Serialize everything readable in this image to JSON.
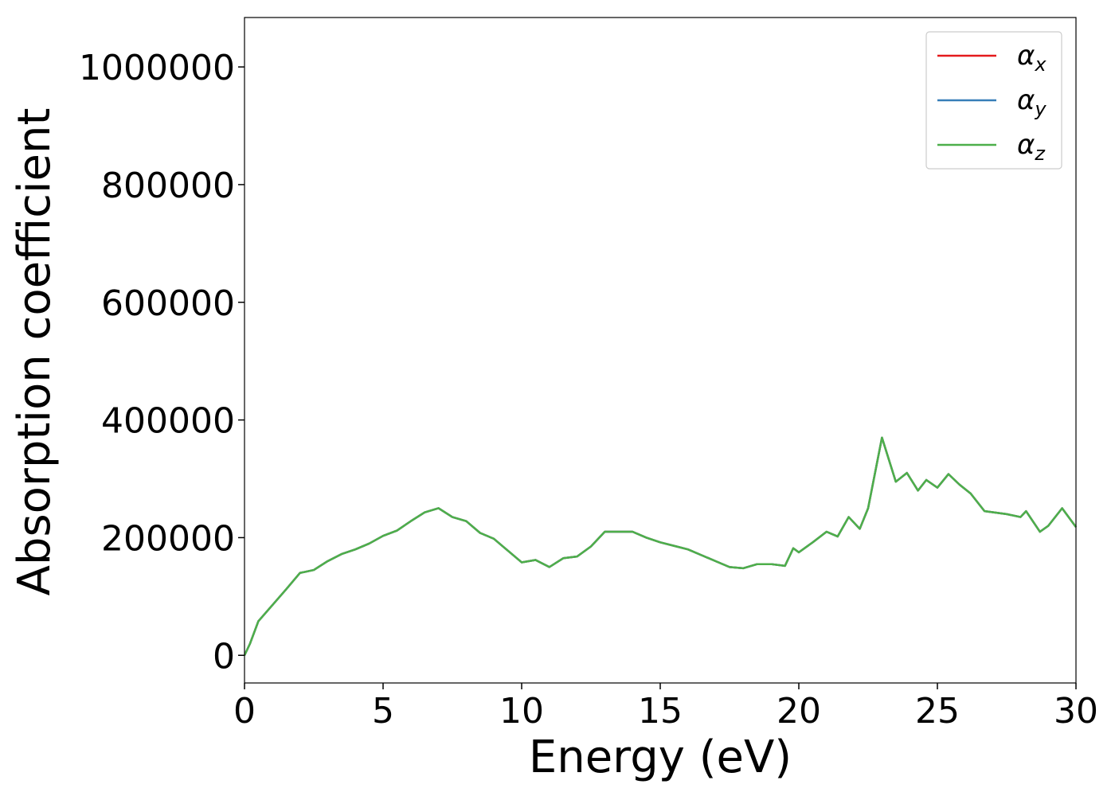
{
  "chart_data": {
    "type": "line",
    "xlabel": "Energy (eV)",
    "ylabel": "Absorption coefficient",
    "xlim": [
      0,
      30
    ],
    "xticks": [
      0,
      5,
      10,
      15,
      20,
      25,
      30
    ],
    "ylim": [
      -47000,
      1084000
    ],
    "yticks": [
      0,
      200000,
      400000,
      600000,
      800000,
      1000000
    ],
    "legend": "upper right",
    "x": [
      0,
      0.2,
      0.5,
      1.0,
      1.5,
      2.0,
      2.5,
      3.0,
      3.5,
      4.0,
      4.5,
      5.0,
      5.5,
      6.0,
      6.5,
      7.0,
      7.5,
      8.0,
      8.5,
      9.0,
      9.5,
      10.0,
      10.5,
      11.0,
      11.5,
      12.0,
      12.5,
      13.0,
      13.5,
      14.0,
      14.5,
      15.0,
      15.5,
      16.0,
      16.5,
      17.0,
      17.5,
      18.0,
      18.5,
      19.0,
      19.5,
      19.8,
      20.0,
      20.5,
      21.0,
      21.4,
      21.8,
      22.2,
      22.5,
      23.0,
      23.5,
      23.9,
      24.3,
      24.6,
      25.0,
      25.4,
      25.8,
      26.2,
      26.7,
      27.5,
      28.0,
      28.2,
      28.7,
      29.0,
      29.5,
      30.0
    ],
    "series": [
      {
        "name": "αx",
        "color": "#e41a1c",
        "values": [
          0,
          20000,
          58000,
          85000,
          112000,
          140000,
          145000,
          160000,
          172000,
          180000,
          190000,
          203000,
          212000,
          228000,
          243000,
          250000,
          235000,
          228000,
          208000,
          198000,
          178000,
          158000,
          162000,
          150000,
          165000,
          168000,
          185000,
          210000,
          210000,
          210000,
          200000,
          192000,
          186000,
          180000,
          170000,
          160000,
          150000,
          148000,
          155000,
          155000,
          152000,
          182000,
          175000,
          192000,
          210000,
          202000,
          235000,
          215000,
          250000,
          370000,
          295000,
          310000,
          280000,
          298000,
          285000,
          308000,
          290000,
          275000,
          245000,
          240000,
          235000,
          245000,
          210000,
          220000,
          250000,
          218000
        ]
      },
      {
        "name": "αy",
        "color": "#377eb8",
        "values": [
          0,
          20000,
          58000,
          85000,
          112000,
          140000,
          145000,
          160000,
          172000,
          180000,
          190000,
          203000,
          212000,
          228000,
          243000,
          250000,
          235000,
          228000,
          208000,
          198000,
          178000,
          158000,
          162000,
          150000,
          165000,
          168000,
          185000,
          210000,
          210000,
          210000,
          200000,
          192000,
          186000,
          180000,
          170000,
          160000,
          150000,
          148000,
          155000,
          155000,
          152000,
          182000,
          175000,
          192000,
          210000,
          202000,
          235000,
          215000,
          250000,
          370000,
          295000,
          310000,
          280000,
          298000,
          285000,
          308000,
          290000,
          275000,
          245000,
          240000,
          235000,
          245000,
          210000,
          220000,
          250000,
          218000
        ]
      },
      {
        "name": "αz",
        "color": "#4daf4a",
        "values": [
          0,
          20000,
          58000,
          85000,
          112000,
          140000,
          145000,
          160000,
          172000,
          180000,
          190000,
          203000,
          212000,
          228000,
          243000,
          250000,
          235000,
          228000,
          208000,
          198000,
          178000,
          158000,
          162000,
          150000,
          165000,
          168000,
          185000,
          210000,
          210000,
          210000,
          200000,
          192000,
          186000,
          180000,
          170000,
          160000,
          150000,
          148000,
          155000,
          155000,
          152000,
          182000,
          175000,
          192000,
          210000,
          202000,
          235000,
          215000,
          250000,
          370000,
          295000,
          310000,
          280000,
          298000,
          285000,
          308000,
          290000,
          275000,
          245000,
          240000,
          235000,
          245000,
          210000,
          220000,
          250000,
          218000
        ]
      }
    ]
  }
}
